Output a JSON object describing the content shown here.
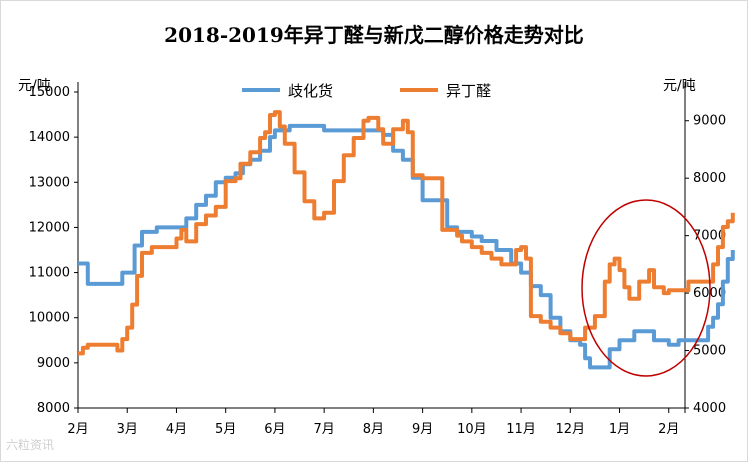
{
  "chart_data": {
    "type": "line",
    "title": "2018-2019年异丁醛与新戊二醇价格走势对比",
    "ylabel_left": "元/吨",
    "ylabel_right": "元/吨",
    "categories": [
      "2月",
      "3月",
      "4月",
      "5月",
      "6月",
      "7月",
      "8月",
      "9月",
      "10月",
      "11月",
      "12月",
      "1月",
      "2月"
    ],
    "ylim_left": [
      8000,
      15000
    ],
    "yticks_left": [
      "8000",
      "9000",
      "10000",
      "11000",
      "12000",
      "13000",
      "14000",
      "15000"
    ],
    "ylim_right": [
      4000,
      9500
    ],
    "yticks_right": [
      "4000",
      "5000",
      "6000",
      "7000",
      "8000",
      "9000"
    ],
    "grid": false,
    "legend": "top-center",
    "annotation": "red ellipse around Jan–Feb 2019",
    "series": [
      {
        "name": "歧化货",
        "axis": "left",
        "color": "#5b9bd5",
        "points": [
          [
            0,
            11200
          ],
          [
            0.1,
            11200
          ],
          [
            0.2,
            10750
          ],
          [
            0.8,
            10750
          ],
          [
            0.9,
            11000
          ],
          [
            1.0,
            11000
          ],
          [
            1.15,
            11600
          ],
          [
            1.3,
            11900
          ],
          [
            1.6,
            12000
          ],
          [
            2.0,
            12000
          ],
          [
            2.2,
            12200
          ],
          [
            2.4,
            12500
          ],
          [
            2.6,
            12700
          ],
          [
            2.8,
            13000
          ],
          [
            3.0,
            13100
          ],
          [
            3.2,
            13200
          ],
          [
            3.35,
            13400
          ],
          [
            3.5,
            13500
          ],
          [
            3.7,
            13700
          ],
          [
            3.9,
            14000
          ],
          [
            4.0,
            14150
          ],
          [
            4.3,
            14250
          ],
          [
            4.9,
            14250
          ],
          [
            5.0,
            14150
          ],
          [
            6.0,
            14150
          ],
          [
            6.2,
            14050
          ],
          [
            6.4,
            13700
          ],
          [
            6.6,
            13500
          ],
          [
            6.8,
            13100
          ],
          [
            7.0,
            12600
          ],
          [
            7.4,
            12600
          ],
          [
            7.5,
            12000
          ],
          [
            7.7,
            11900
          ],
          [
            8.0,
            11800
          ],
          [
            8.2,
            11700
          ],
          [
            8.5,
            11500
          ],
          [
            8.8,
            11200
          ],
          [
            9.0,
            11000
          ],
          [
            9.2,
            10700
          ],
          [
            9.4,
            10500
          ],
          [
            9.6,
            10000
          ],
          [
            9.8,
            9700
          ],
          [
            10.0,
            9500
          ],
          [
            10.2,
            9400
          ],
          [
            10.3,
            9100
          ],
          [
            10.4,
            8900
          ],
          [
            10.7,
            8900
          ],
          [
            10.8,
            9300
          ],
          [
            11.0,
            9500
          ],
          [
            11.3,
            9700
          ],
          [
            11.6,
            9700
          ],
          [
            11.7,
            9500
          ],
          [
            12.0,
            9400
          ],
          [
            12.2,
            9500
          ],
          [
            12.7,
            9500
          ],
          [
            12.8,
            9800
          ],
          [
            12.9,
            10000
          ],
          [
            13.0,
            10300
          ],
          [
            13.1,
            10800
          ],
          [
            13.2,
            11300
          ],
          [
            13.3,
            11500
          ]
        ]
      },
      {
        "name": "异丁醛",
        "axis": "right",
        "color": "#ed7d31",
        "points": [
          [
            0,
            4950
          ],
          [
            0.1,
            5050
          ],
          [
            0.2,
            5100
          ],
          [
            0.7,
            5100
          ],
          [
            0.8,
            5000
          ],
          [
            0.9,
            5200
          ],
          [
            1.0,
            5400
          ],
          [
            1.1,
            5800
          ],
          [
            1.2,
            6300
          ],
          [
            1.3,
            6700
          ],
          [
            1.5,
            6800
          ],
          [
            1.9,
            6800
          ],
          [
            2.0,
            6950
          ],
          [
            2.1,
            7100
          ],
          [
            2.2,
            6900
          ],
          [
            2.4,
            7200
          ],
          [
            2.6,
            7350
          ],
          [
            2.8,
            7500
          ],
          [
            3.0,
            7950
          ],
          [
            3.2,
            8000
          ],
          [
            3.3,
            8250
          ],
          [
            3.5,
            8450
          ],
          [
            3.7,
            8700
          ],
          [
            3.8,
            8800
          ],
          [
            3.9,
            9100
          ],
          [
            4.0,
            9150
          ],
          [
            4.1,
            8900
          ],
          [
            4.2,
            8600
          ],
          [
            4.4,
            8100
          ],
          [
            4.6,
            7600
          ],
          [
            4.8,
            7300
          ],
          [
            5.0,
            7400
          ],
          [
            5.2,
            7950
          ],
          [
            5.4,
            8400
          ],
          [
            5.6,
            8700
          ],
          [
            5.8,
            9000
          ],
          [
            5.9,
            9050
          ],
          [
            6.1,
            8850
          ],
          [
            6.2,
            8600
          ],
          [
            6.4,
            8850
          ],
          [
            6.6,
            9000
          ],
          [
            6.7,
            8800
          ],
          [
            6.8,
            8050
          ],
          [
            7.0,
            8000
          ],
          [
            7.3,
            8000
          ],
          [
            7.4,
            7100
          ],
          [
            7.6,
            7100
          ],
          [
            7.7,
            7000
          ],
          [
            7.8,
            6900
          ],
          [
            8.0,
            6800
          ],
          [
            8.2,
            6700
          ],
          [
            8.4,
            6600
          ],
          [
            8.6,
            6500
          ],
          [
            8.8,
            6500
          ],
          [
            8.9,
            6750
          ],
          [
            9.0,
            6800
          ],
          [
            9.1,
            6600
          ],
          [
            9.2,
            5600
          ],
          [
            9.4,
            5500
          ],
          [
            9.6,
            5400
          ],
          [
            9.8,
            5300
          ],
          [
            10.0,
            5200
          ],
          [
            10.2,
            5200
          ],
          [
            10.3,
            5400
          ],
          [
            10.5,
            5600
          ],
          [
            10.7,
            6200
          ],
          [
            10.8,
            6500
          ],
          [
            10.9,
            6600
          ],
          [
            11.0,
            6400
          ],
          [
            11.1,
            6100
          ],
          [
            11.2,
            5900
          ],
          [
            11.4,
            6200
          ],
          [
            11.6,
            6400
          ],
          [
            11.7,
            6100
          ],
          [
            11.9,
            6000
          ],
          [
            12.0,
            6050
          ],
          [
            12.3,
            6050
          ],
          [
            12.4,
            6200
          ],
          [
            12.8,
            6200
          ],
          [
            12.9,
            6500
          ],
          [
            13.0,
            6800
          ],
          [
            13.1,
            7150
          ],
          [
            13.2,
            7250
          ],
          [
            13.3,
            7400
          ]
        ]
      }
    ]
  },
  "watermark": "六粒资讯"
}
